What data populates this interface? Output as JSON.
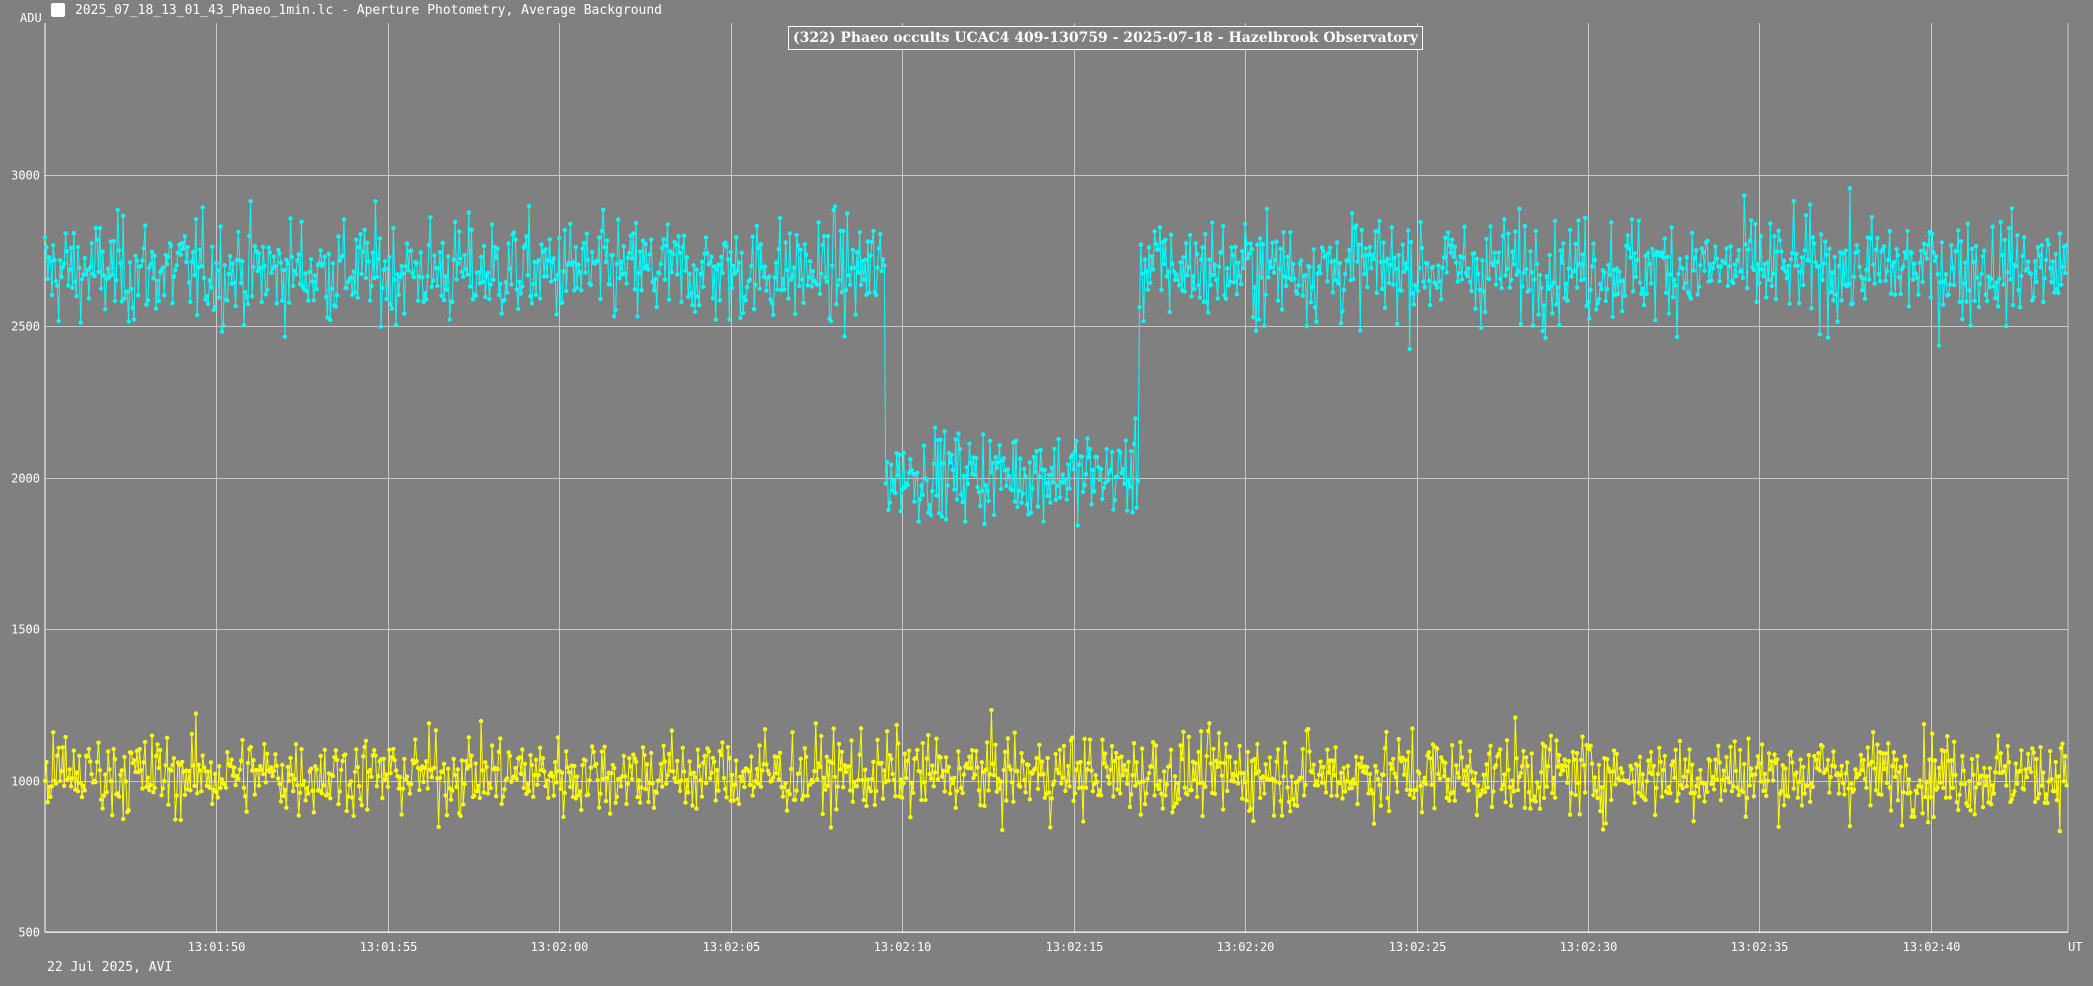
{
  "window": {
    "title": "2025_07_18_13_01_43_Phaeo_1min.lc - Aperture Photometry, Average Background",
    "icon": "app-icon"
  },
  "footer": {
    "text": "22 Jul 2025, AVI"
  },
  "chart_data": {
    "type": "line",
    "title": "(322) Phaeo occults UCAC4 409-130759 - 2025-07-18 - Hazelbrook Observatory",
    "ylabel": "ADU",
    "xlabel": "UT",
    "ylim": [
      500,
      3500
    ],
    "xlim": [
      "13:01:45.0",
      "13:02:44.0"
    ],
    "yticks": [
      500,
      1000,
      1500,
      2000,
      2500,
      3000
    ],
    "yticklabels": [
      "500",
      "1000",
      "1500",
      "2000",
      "2500",
      "3000"
    ],
    "xticks": [
      "13:01:50",
      "13:01:55",
      "13:02:00",
      "13:02:05",
      "13:02:10",
      "13:02:15",
      "13:02:20",
      "13:02:25",
      "13:02:30",
      "13:02:35",
      "13:02:40"
    ],
    "grid": true,
    "markers": true,
    "series": [
      {
        "color": "#00ffff",
        "x_start": "13:01:45.0",
        "x_step_seconds": 0.04,
        "segments": [
          {
            "until": "13:02:09.5",
            "baseline": 2680,
            "noise": 140,
            "min": 2220,
            "max": 3160
          },
          {
            "until": "13:02:16.9",
            "baseline": 2010,
            "noise": 120,
            "min": 1700,
            "max": 2290
          },
          {
            "until": "13:02:44.0",
            "baseline": 2690,
            "noise": 140,
            "min": 2280,
            "max": 3180
          }
        ]
      },
      {
        "color": "#ffff00",
        "x_start": "13:01:45.0",
        "x_step_seconds": 0.04,
        "segments": [
          {
            "until": "13:02:44.0",
            "baseline": 1020,
            "noise": 110,
            "min": 660,
            "max": 1450
          }
        ]
      }
    ]
  }
}
